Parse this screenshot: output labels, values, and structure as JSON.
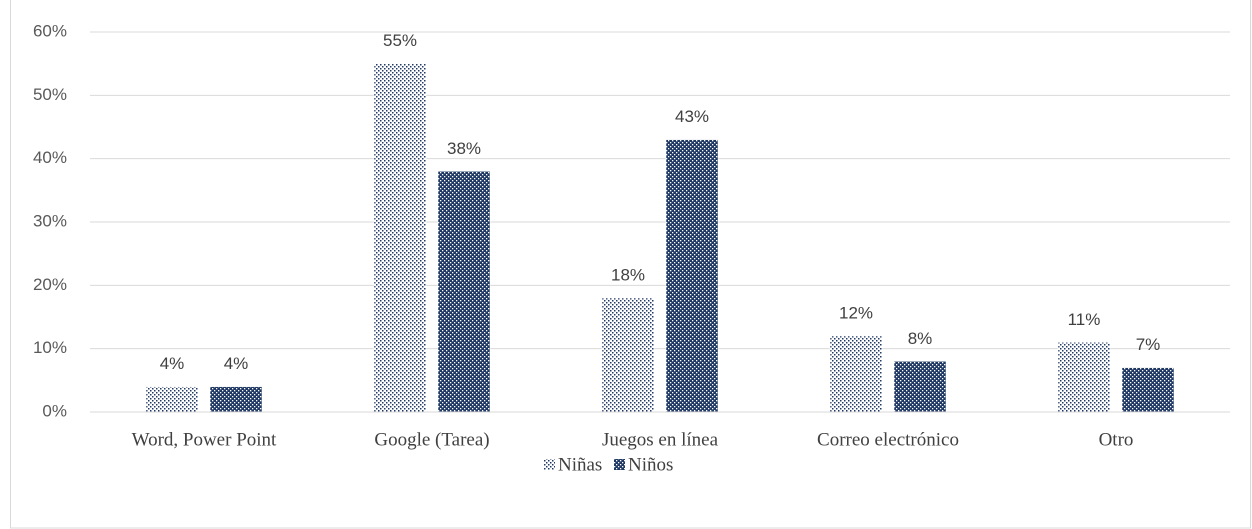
{
  "chart_data": {
    "type": "bar",
    "categories": [
      "Word, Power Point",
      "Google (Tarea)",
      "Juegos en línea",
      "Correo electrónico",
      "Otro"
    ],
    "series": [
      {
        "name": "Niñas",
        "color": "#1f3864",
        "values": [
          4,
          55,
          18,
          12,
          11
        ],
        "value_labels": [
          "4%",
          "55%",
          "18%",
          "12%",
          "11%"
        ]
      },
      {
        "name": "Niños",
        "color": "#1f3864",
        "values": [
          4,
          38,
          43,
          8,
          7
        ],
        "value_labels": [
          "4%",
          "38%",
          "43%",
          "8%",
          "7%"
        ]
      }
    ],
    "ylim": [
      0,
      60
    ],
    "yticks": [
      {
        "value": 0,
        "label": "0%"
      },
      {
        "value": 10,
        "label": "10%"
      },
      {
        "value": 20,
        "label": "20%"
      },
      {
        "value": 30,
        "label": "30%"
      },
      {
        "value": 40,
        "label": "40%"
      },
      {
        "value": 50,
        "label": "50%"
      },
      {
        "value": 60,
        "label": "60%"
      }
    ],
    "grid": true,
    "legend": "bottom"
  }
}
